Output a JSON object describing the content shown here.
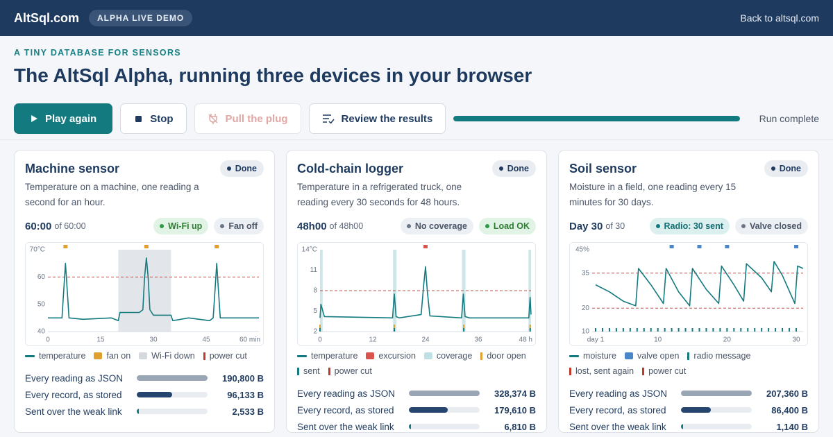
{
  "header": {
    "brand": "AltSql.com",
    "badge": "ALPHA LIVE DEMO",
    "link": "Back to altsql.com"
  },
  "hero": {
    "eyebrow": "A TINY DATABASE FOR SENSORS",
    "title": "The AltSql Alpha, running three devices in your browser"
  },
  "toolbar": {
    "buttons": [
      "Play again",
      "Stop",
      "Pull the plug",
      "Review the results"
    ],
    "progress": 100,
    "status": "Run complete"
  },
  "cards": [
    {
      "title": "Machine sensor",
      "status": "Done",
      "description": "Temperature on a machine, one reading a second for an hour.",
      "clock": "60:00",
      "clock_of": "of 60:00",
      "pills": [
        {
          "label": "Wi-Fi up",
          "tone": "ok"
        },
        {
          "label": "Fan off",
          "tone": "off"
        }
      ],
      "chart": {
        "type": "line",
        "xlim": [
          0,
          60
        ],
        "ylim": [
          40,
          70
        ],
        "xticks": [
          0,
          15,
          30,
          45,
          {
            "value": 60,
            "label": "60 min"
          }
        ],
        "yticks": [
          40,
          50,
          60,
          {
            "value": 70,
            "label": "70°C"
          }
        ],
        "thresholds": [
          60
        ],
        "threshold_color": "#c0504d",
        "bands": [
          {
            "x": [
              20,
              35
            ],
            "color": "#e2e5e9"
          }
        ],
        "markers": [
          {
            "x": [
              5,
              28,
              48
            ],
            "color": "#e0a030",
            "row": "top"
          }
        ],
        "series": {
          "name": "temperature",
          "color": "#137a7f",
          "x": [
            0,
            4,
            4.5,
            5,
            5.5,
            6,
            10,
            18,
            20,
            20.5,
            26,
            27,
            27.5,
            28,
            28.5,
            29,
            30,
            35,
            35.5,
            40,
            46,
            47,
            47.5,
            48,
            48.5,
            49,
            55,
            60
          ],
          "values": [
            45,
            45,
            55,
            65,
            55,
            45,
            44.5,
            45,
            44,
            47,
            47,
            48,
            60,
            67,
            60,
            48,
            46,
            46,
            44,
            45,
            44,
            45,
            55,
            65,
            55,
            45,
            45,
            45
          ]
        }
      },
      "legend": [
        {
          "label": "temperature",
          "color": "#137a7f",
          "kind": "line"
        },
        {
          "label": "fan on",
          "color": "#e0a030",
          "kind": "box"
        },
        {
          "label": "Wi-Fi down",
          "color": "#d5d9de",
          "kind": "box"
        },
        {
          "label": "power cut",
          "color": "#c0392b",
          "kind": "tick"
        }
      ],
      "stats": [
        {
          "label": "Every reading as JSON",
          "value": 190800,
          "value_label": "190,800 B",
          "color": "#9aa5b5"
        },
        {
          "label": "Every record, as stored",
          "value": 96133,
          "value_label": "96,133 B",
          "color": "#25456e"
        },
        {
          "label": "Sent over the weak link",
          "value": 2533,
          "value_label": "2,533 B",
          "color": "#137a7f"
        }
      ]
    },
    {
      "title": "Cold-chain logger",
      "status": "Done",
      "description": "Temperature in a refrigerated truck, one reading every 30 seconds for 48 hours.",
      "clock": "48h00",
      "clock_of": "of 48h00",
      "pills": [
        {
          "label": "No coverage",
          "tone": "off"
        },
        {
          "label": "Load OK",
          "tone": "ok"
        }
      ],
      "chart": {
        "type": "line",
        "xlim": [
          0,
          48
        ],
        "ylim": [
          2,
          14
        ],
        "xticks": [
          0,
          12,
          24,
          36,
          {
            "value": 48,
            "label": "48 h"
          }
        ],
        "yticks": [
          2,
          5,
          8,
          11,
          {
            "value": 14,
            "label": "14°C"
          }
        ],
        "thresholds": [
          8
        ],
        "threshold_color": "#c0504d",
        "bands": [
          {
            "x": [
              0,
              0.6
            ],
            "color": "#cfe6e8"
          },
          {
            "x": [
              16.6,
              17.4
            ],
            "color": "#cfe6e8"
          },
          {
            "x": [
              32.3,
              33.1
            ],
            "color": "#cfe6e8"
          },
          {
            "x": [
              47.4,
              48
            ],
            "color": "#cfe6e8"
          }
        ],
        "markers": [
          {
            "x": [
              24
            ],
            "color": "#d9534f",
            "row": "top"
          },
          {
            "x": [
              0,
              16.9,
              32.7,
              47.8
            ],
            "color": "#e0a030",
            "row": "bottom"
          },
          {
            "x": [
              0,
              16.9,
              32.7,
              47.8
            ],
            "color": "#137a7f",
            "row": "bottom2"
          }
        ],
        "series": {
          "name": "temperature",
          "color": "#137a7f",
          "x": [
            0,
            0.2,
            1,
            16.5,
            16.9,
            17.3,
            18,
            23,
            23.6,
            24,
            24.4,
            25,
            32.2,
            32.6,
            33,
            34,
            47.5,
            47.8,
            48
          ],
          "values": [
            4,
            6,
            4.2,
            4,
            7.5,
            4.2,
            4,
            4.5,
            9,
            11.5,
            8,
            4.3,
            4,
            7.5,
            4.2,
            4,
            4,
            7,
            4.5
          ]
        }
      },
      "legend": [
        {
          "label": "temperature",
          "color": "#137a7f",
          "kind": "line"
        },
        {
          "label": "excursion",
          "color": "#d9534f",
          "kind": "box"
        },
        {
          "label": "coverage",
          "color": "#bfdfe2",
          "kind": "box"
        },
        {
          "label": "door open",
          "color": "#e0a030",
          "kind": "tick"
        },
        {
          "label": "sent",
          "color": "#137a7f",
          "kind": "tick"
        },
        {
          "label": "power cut",
          "color": "#c0392b",
          "kind": "tick"
        }
      ],
      "stats": [
        {
          "label": "Every reading as JSON",
          "value": 328374,
          "value_label": "328,374 B",
          "color": "#9aa5b5"
        },
        {
          "label": "Every record, as stored",
          "value": 179610,
          "value_label": "179,610 B",
          "color": "#25456e"
        },
        {
          "label": "Sent over the weak link",
          "value": 6810,
          "value_label": "6,810 B",
          "color": "#137a7f"
        }
      ]
    },
    {
      "title": "Soil sensor",
      "status": "Done",
      "description": "Moisture in a field, one reading every 15 minutes for 30 days.",
      "clock": "Day 30",
      "clock_of": "of 30",
      "pills": [
        {
          "label": "Radio: 30 sent",
          "tone": "info"
        },
        {
          "label": "Valve closed",
          "tone": "off"
        }
      ],
      "chart": {
        "type": "line",
        "xlim": [
          0.5,
          31
        ],
        "ylim": [
          10,
          45
        ],
        "xticks": [
          {
            "value": 1,
            "label": "day 1"
          },
          10,
          20,
          30
        ],
        "yticks": [
          10,
          20,
          35,
          {
            "value": 45,
            "label": "45%"
          }
        ],
        "thresholds": [
          35,
          20
        ],
        "threshold_color": "#c0504d",
        "bands": [],
        "markers": [
          {
            "x": [
              12,
              16,
              20,
              30
            ],
            "color": "#4a86c8",
            "row": "top"
          },
          {
            "x": [
              1,
              2,
              3,
              4,
              5,
              6,
              7,
              8,
              9,
              10,
              11,
              12,
              13,
              14,
              15,
              16,
              17,
              18,
              19,
              20,
              21,
              22,
              23,
              24,
              25,
              26,
              27,
              28,
              29,
              30
            ],
            "color": "#137a7f",
            "row": "bottom2"
          }
        ],
        "series": {
          "name": "moisture",
          "color": "#137a7f",
          "x": [
            1,
            3,
            5,
            6.8,
            7.2,
            9,
            10.8,
            11.2,
            13,
            14.6,
            15,
            17,
            18.8,
            19.2,
            21,
            22.4,
            22.8,
            25,
            26.4,
            26.8,
            28,
            29.8,
            30.2,
            31
          ],
          "values": [
            30,
            27,
            23,
            21,
            37,
            30,
            22,
            37,
            27,
            21,
            37,
            28,
            22,
            38,
            30,
            23,
            39,
            33,
            27,
            40,
            34,
            22,
            38,
            37
          ]
        }
      },
      "legend": [
        {
          "label": "moisture",
          "color": "#137a7f",
          "kind": "line"
        },
        {
          "label": "valve open",
          "color": "#4a86c8",
          "kind": "box"
        },
        {
          "label": "radio message",
          "color": "#137a7f",
          "kind": "tick"
        },
        {
          "label": "lost, sent again",
          "color": "#c0392b",
          "kind": "tick"
        },
        {
          "label": "power cut",
          "color": "#c0392b",
          "kind": "tick"
        }
      ],
      "stats": [
        {
          "label": "Every reading as JSON",
          "value": 207360,
          "value_label": "207,360 B",
          "color": "#9aa5b5"
        },
        {
          "label": "Every record, as stored",
          "value": 86400,
          "value_label": "86,400 B",
          "color": "#25456e"
        },
        {
          "label": "Sent over the weak link",
          "value": 1140,
          "value_label": "1,140 B",
          "color": "#137a7f"
        }
      ]
    }
  ]
}
